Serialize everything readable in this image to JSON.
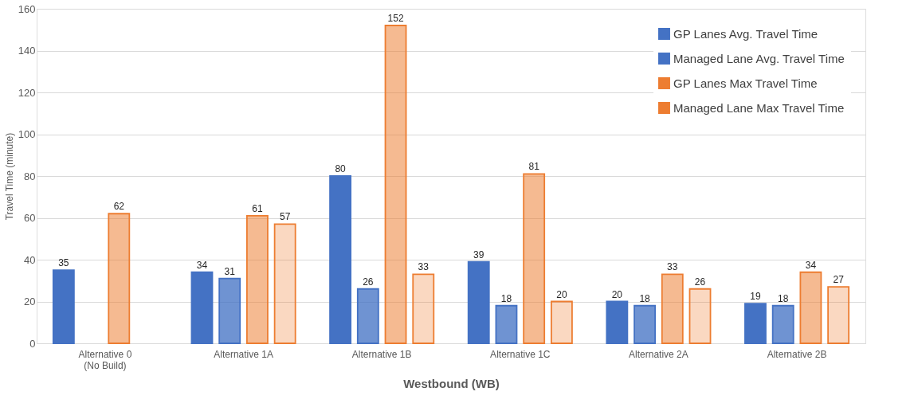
{
  "chart_data": {
    "type": "bar",
    "xlabel": "Westbound (WB)",
    "ylabel": "Travel Time (minute)",
    "categories": [
      "Alternative 0\n(No Build)",
      "Alternative 1A",
      "Alternative 1B",
      "Alternative 1C",
      "Alternative 2A",
      "Alternative 2B"
    ],
    "series": [
      {
        "name": "GP Lanes Avg. Travel Time",
        "color": "#4472c4",
        "values": [
          35,
          34,
          80,
          39,
          20,
          19
        ]
      },
      {
        "name": "Managed Lane Avg. Travel Time",
        "color": "#4472c4",
        "values": [
          null,
          31,
          26,
          18,
          18,
          18
        ]
      },
      {
        "name": "GP Lanes Max Travel Time",
        "color": "#ed7d31",
        "values": [
          62,
          61,
          152,
          81,
          33,
          34
        ]
      },
      {
        "name": "Managed Lane Max Travel Time",
        "color": "#ed7d31",
        "values": [
          null,
          57,
          33,
          20,
          26,
          27
        ]
      }
    ],
    "ylim": [
      0,
      160
    ],
    "yticks": [
      0,
      20,
      40,
      60,
      80,
      100,
      120,
      140,
      160
    ],
    "grid": "y",
    "legend": "top right",
    "data_labels": true
  }
}
